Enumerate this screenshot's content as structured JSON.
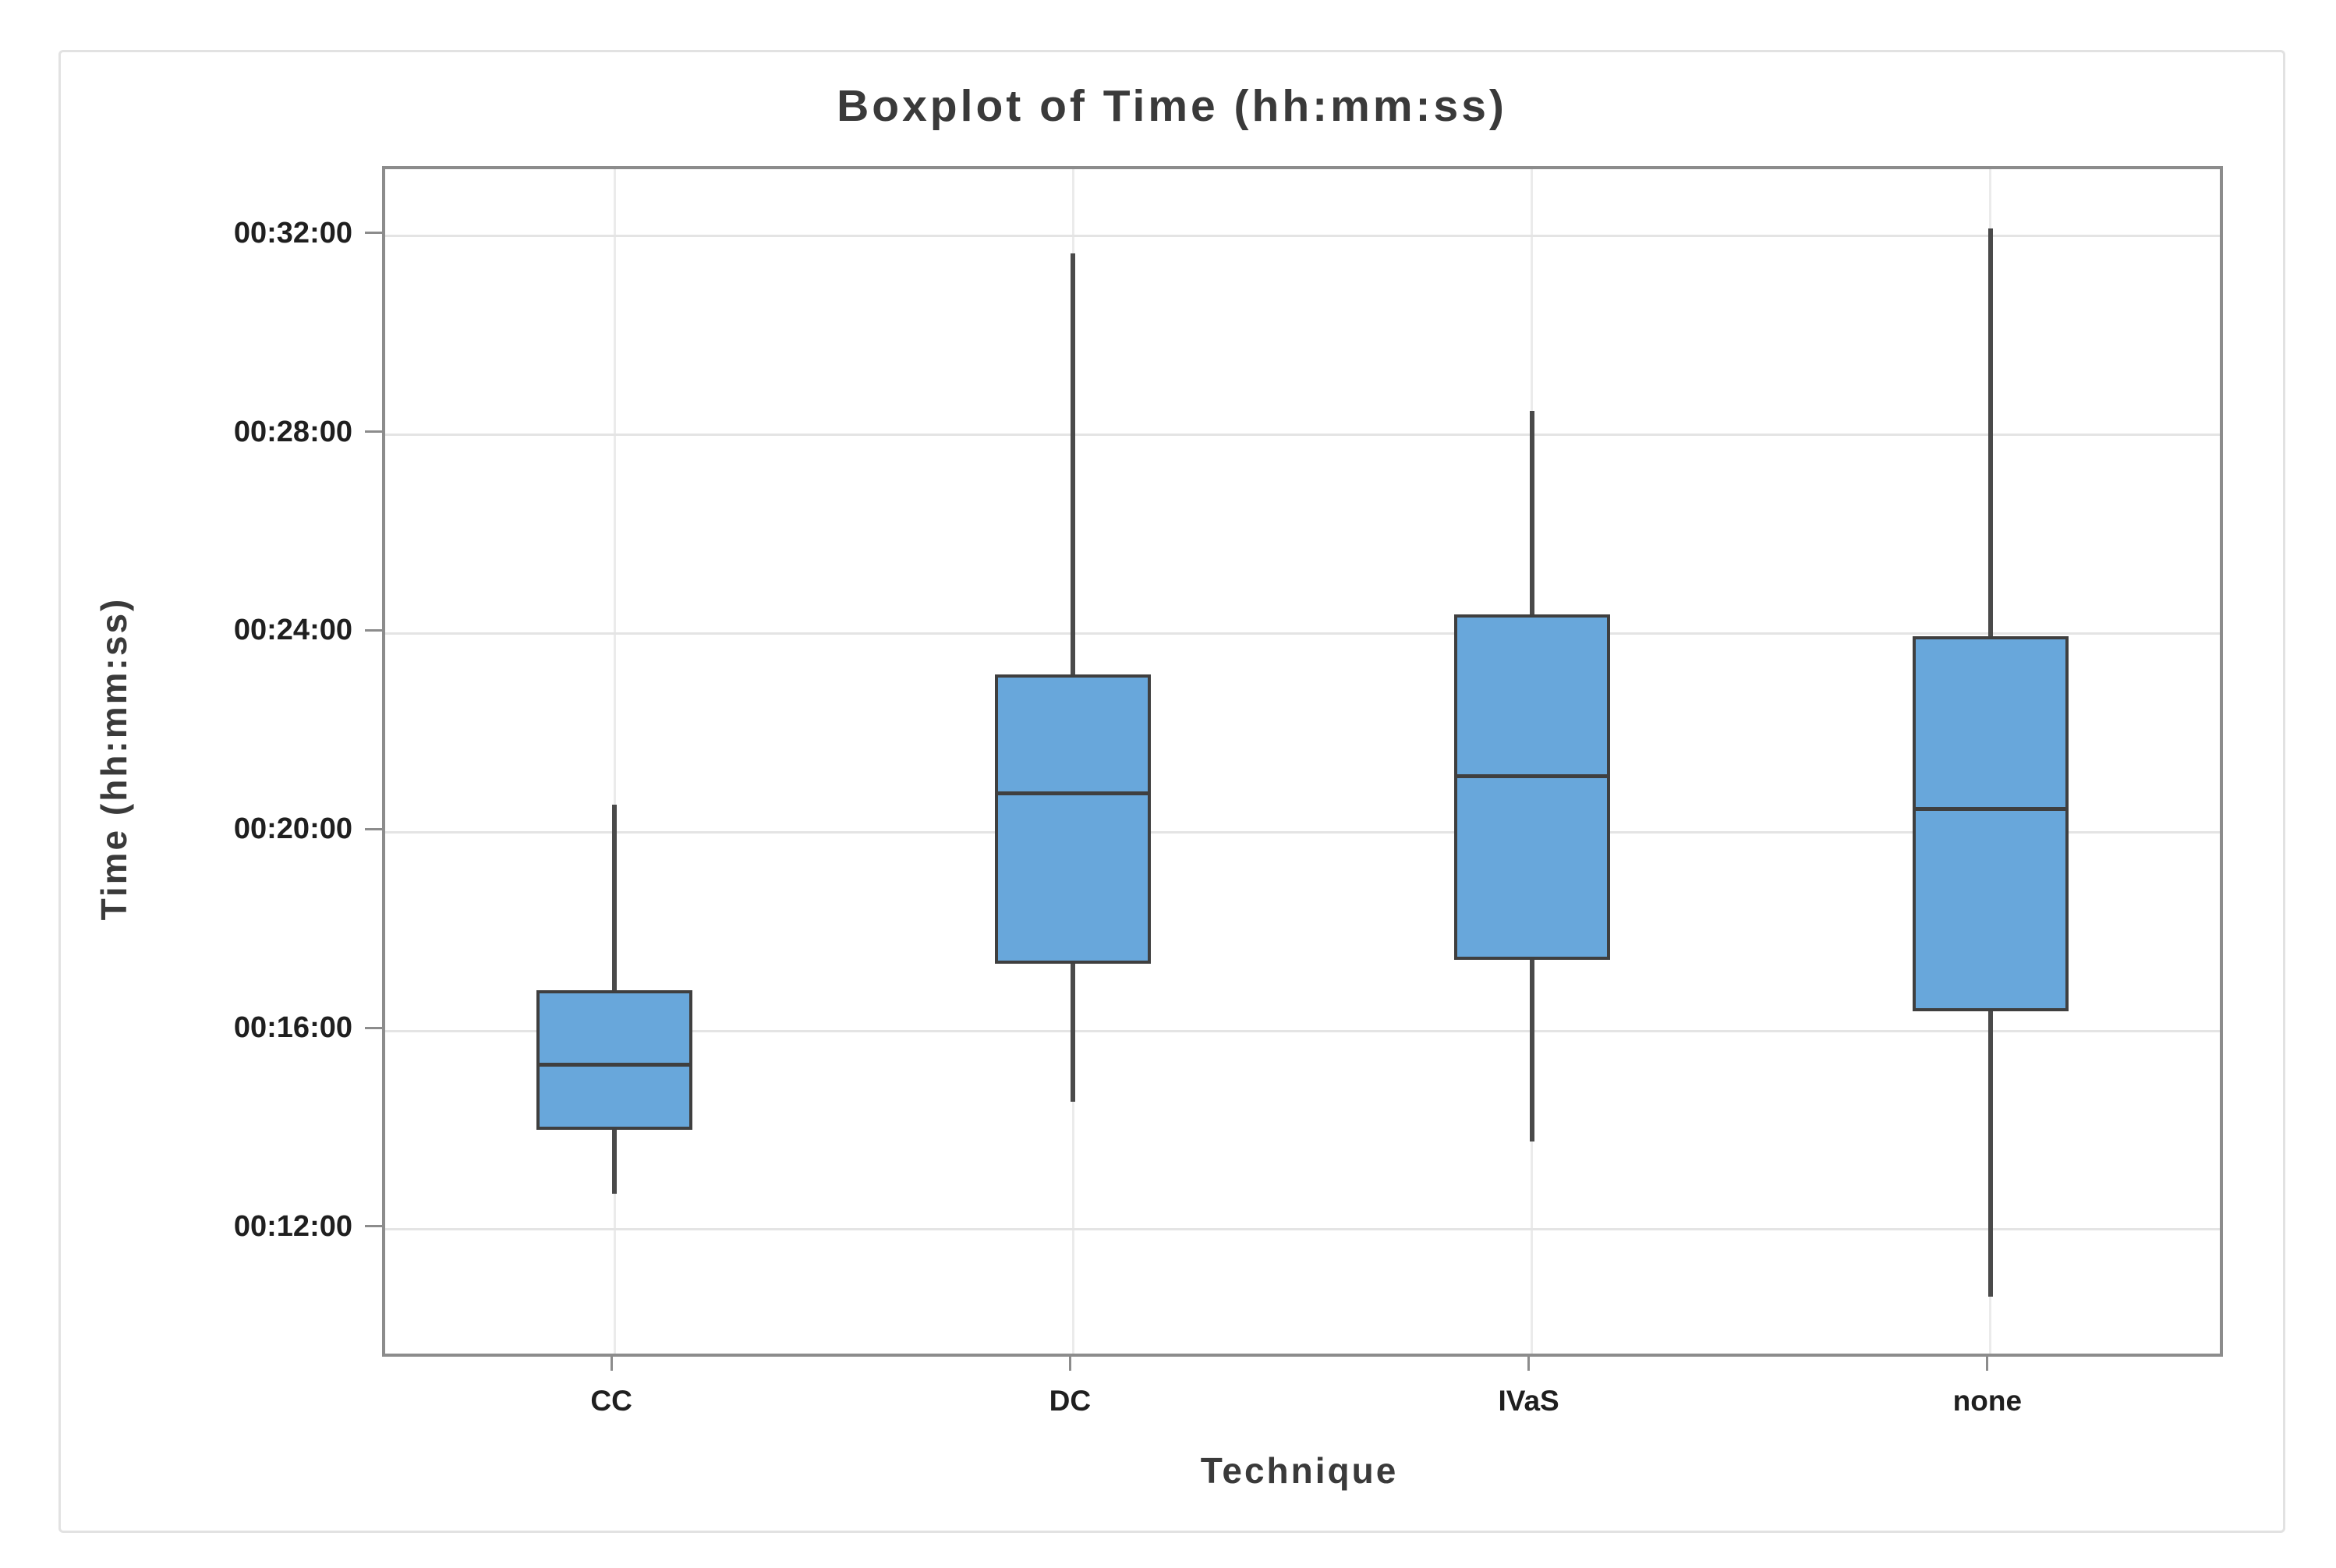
{
  "title": "Boxplot of Time (hh:mm:ss)",
  "colors": {
    "box_fill": "#68a7db",
    "box_border": "#3f3f3f",
    "whisker": "#4a4a4a",
    "axis_border": "#8c8c8c",
    "gridline": "#e4e4e4",
    "tick_text": "#1f1f1f",
    "title_text": "#3a3a3a",
    "frame_border": "#e2e2e2"
  },
  "chart_data": {
    "type": "boxplot",
    "title": "Boxplot of Time (hh:mm:ss)",
    "xlabel": "Technique",
    "ylabel": "Time (hh:mm:ss)",
    "categories": [
      "CC",
      "DC",
      "IVaS",
      "none"
    ],
    "y_ticks": [
      {
        "label": "00:32:00",
        "seconds": 1920
      },
      {
        "label": "00:28:00",
        "seconds": 1680
      },
      {
        "label": "00:24:00",
        "seconds": 1440
      },
      {
        "label": "00:20:00",
        "seconds": 1200
      },
      {
        "label": "00:16:00",
        "seconds": 960
      },
      {
        "label": "00:12:00",
        "seconds": 720
      }
    ],
    "y_axis_top_seconds": 2001,
    "y_axis_bottom_seconds": 570,
    "grid": "on",
    "legend": "none",
    "series": [
      {
        "category": "CC",
        "whisker_low": "00:12:43",
        "whisker_low_s": 763,
        "q1": "00:14:00",
        "q1_s": 840,
        "median": "00:15:19",
        "median_s": 919,
        "q3": "00:16:49",
        "q3_s": 1009,
        "whisker_high": "00:20:33",
        "whisker_high_s": 1233
      },
      {
        "category": "DC",
        "whisker_low": "00:14:34",
        "whisker_low_s": 874,
        "q1": "00:17:21",
        "q1_s": 1041,
        "median": "00:20:47",
        "median_s": 1247,
        "q3": "00:23:11",
        "q3_s": 1391,
        "whisker_high": "00:31:39",
        "whisker_high_s": 1899
      },
      {
        "category": "IVaS",
        "whisker_low": "00:13:46",
        "whisker_low_s": 826,
        "q1": "00:17:26",
        "q1_s": 1046,
        "median": "00:21:08",
        "median_s": 1268,
        "q3": "00:24:23",
        "q3_s": 1463,
        "whisker_high": "00:28:29",
        "whisker_high_s": 1709
      },
      {
        "category": "none",
        "whisker_low": "00:10:39",
        "whisker_low_s": 639,
        "q1": "00:16:24",
        "q1_s": 984,
        "median": "00:20:28",
        "median_s": 1228,
        "q3": "00:23:57",
        "q3_s": 1437,
        "whisker_high": "00:32:09",
        "whisker_high_s": 1929
      }
    ]
  }
}
